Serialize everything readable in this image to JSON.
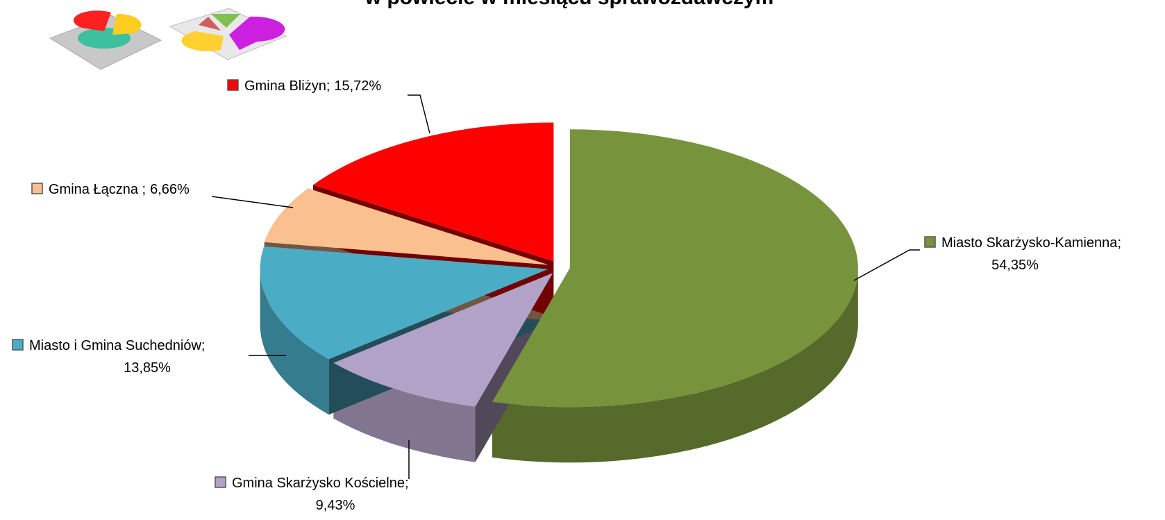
{
  "chart_data": {
    "type": "pie3d",
    "title": "w powiecie w miesiącu sprawozdawczym",
    "categories": [
      "Miasto Skarżysko-Kamienna",
      "Gmina Skarżysko Kościelne",
      "Miasto i Gmina Suchedniów",
      "Gmina Łączna ",
      "Gmina Bliżyn"
    ],
    "values": [
      54.35,
      9.43,
      13.85,
      6.66,
      15.72
    ],
    "value_labels": [
      "54,35%",
      "9,43%",
      "13,85%",
      "6,66%",
      "15,72%"
    ],
    "label_separator": ";",
    "colors": [
      "#77933c",
      "#b3a2c7",
      "#4bacc6",
      "#fac090",
      "#ff0000"
    ]
  }
}
